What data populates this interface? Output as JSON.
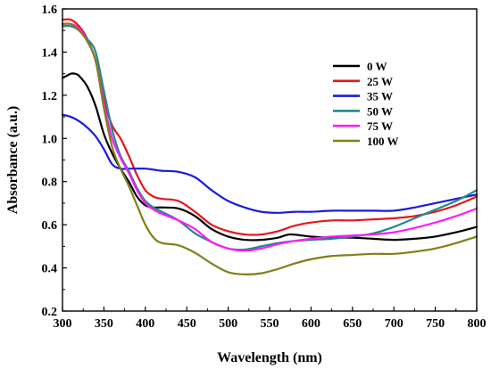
{
  "chart_data": {
    "type": "line",
    "title": "",
    "xlabel": "Wavelength (nm)",
    "ylabel": "Absorbance (a.u.)",
    "xlim": [
      300,
      800
    ],
    "ylim": [
      0.2,
      1.6
    ],
    "xticks": [
      300,
      350,
      400,
      450,
      500,
      550,
      600,
      650,
      700,
      750,
      800
    ],
    "yticks": [
      0.2,
      0.4,
      0.6,
      0.8,
      1.0,
      1.2,
      1.4,
      1.6
    ],
    "ytick_labels": [
      "0.2",
      "0.4",
      "0.6",
      "0.8",
      "1.0",
      "1.2",
      "1.4",
      "1.6"
    ],
    "legend_position": "top-right",
    "grid": false,
    "series": [
      {
        "name": "0 W",
        "color": "#000000",
        "x": [
          300,
          305,
          310,
          315,
          320,
          330,
          340,
          350,
          360,
          370,
          380,
          390,
          400,
          410,
          420,
          440,
          460,
          480,
          500,
          520,
          540,
          560,
          575,
          600,
          625,
          650,
          675,
          700,
          725,
          750,
          775,
          800
        ],
        "y": [
          1.28,
          1.29,
          1.3,
          1.3,
          1.29,
          1.24,
          1.15,
          1.02,
          0.93,
          0.86,
          0.8,
          0.73,
          0.69,
          0.68,
          0.68,
          0.675,
          0.64,
          0.58,
          0.545,
          0.53,
          0.53,
          0.54,
          0.555,
          0.545,
          0.54,
          0.54,
          0.535,
          0.53,
          0.535,
          0.545,
          0.565,
          0.59
        ]
      },
      {
        "name": "25 W",
        "color": "#e8141b",
        "x": [
          300,
          310,
          320,
          330,
          340,
          350,
          360,
          370,
          380,
          390,
          400,
          410,
          420,
          440,
          460,
          480,
          500,
          520,
          540,
          560,
          580,
          600,
          625,
          650,
          675,
          700,
          725,
          750,
          775,
          800
        ],
        "y": [
          1.55,
          1.55,
          1.52,
          1.46,
          1.36,
          1.18,
          1.06,
          1.0,
          0.92,
          0.83,
          0.76,
          0.73,
          0.72,
          0.71,
          0.66,
          0.6,
          0.57,
          0.555,
          0.555,
          0.57,
          0.595,
          0.61,
          0.62,
          0.62,
          0.625,
          0.63,
          0.64,
          0.66,
          0.69,
          0.73
        ]
      },
      {
        "name": "35 W",
        "color": "#1a1ae0",
        "x": [
          300,
          310,
          320,
          330,
          340,
          350,
          360,
          370,
          380,
          390,
          400,
          410,
          420,
          440,
          460,
          480,
          500,
          520,
          540,
          560,
          580,
          600,
          625,
          650,
          675,
          700,
          725,
          750,
          775,
          800
        ],
        "y": [
          1.11,
          1.1,
          1.08,
          1.05,
          1.01,
          0.95,
          0.88,
          0.86,
          0.86,
          0.86,
          0.86,
          0.855,
          0.85,
          0.845,
          0.82,
          0.76,
          0.71,
          0.68,
          0.66,
          0.655,
          0.66,
          0.66,
          0.665,
          0.665,
          0.665,
          0.665,
          0.68,
          0.7,
          0.72,
          0.74
        ]
      },
      {
        "name": "50 W",
        "color": "#1f8a8a",
        "x": [
          300,
          310,
          320,
          330,
          340,
          350,
          360,
          370,
          380,
          390,
          400,
          410,
          420,
          440,
          460,
          480,
          500,
          520,
          540,
          560,
          580,
          600,
          625,
          650,
          675,
          700,
          725,
          750,
          775,
          800
        ],
        "y": [
          1.52,
          1.52,
          1.5,
          1.46,
          1.4,
          1.22,
          1.04,
          0.92,
          0.85,
          0.77,
          0.71,
          0.68,
          0.66,
          0.62,
          0.56,
          0.52,
          0.49,
          0.485,
          0.5,
          0.515,
          0.525,
          0.53,
          0.535,
          0.545,
          0.56,
          0.59,
          0.63,
          0.67,
          0.71,
          0.76
        ]
      },
      {
        "name": "75 W",
        "color": "#ff1aff",
        "x": [
          300,
          310,
          320,
          330,
          340,
          350,
          360,
          370,
          380,
          390,
          400,
          410,
          420,
          440,
          460,
          480,
          500,
          520,
          540,
          560,
          580,
          600,
          625,
          650,
          675,
          700,
          725,
          750,
          775,
          800
        ],
        "y": [
          1.53,
          1.53,
          1.51,
          1.45,
          1.36,
          1.16,
          1.0,
          0.91,
          0.84,
          0.76,
          0.7,
          0.67,
          0.65,
          0.62,
          0.58,
          0.52,
          0.49,
          0.48,
          0.49,
          0.51,
          0.525,
          0.535,
          0.545,
          0.55,
          0.555,
          0.565,
          0.585,
          0.61,
          0.64,
          0.675
        ]
      },
      {
        "name": "100 W",
        "color": "#808018",
        "x": [
          300,
          310,
          320,
          330,
          340,
          350,
          360,
          370,
          380,
          390,
          400,
          410,
          420,
          440,
          460,
          480,
          500,
          520,
          540,
          560,
          580,
          600,
          625,
          650,
          675,
          700,
          725,
          750,
          775,
          800
        ],
        "y": [
          1.53,
          1.53,
          1.5,
          1.45,
          1.36,
          1.14,
          0.96,
          0.86,
          0.78,
          0.69,
          0.6,
          0.54,
          0.515,
          0.505,
          0.47,
          0.42,
          0.38,
          0.37,
          0.375,
          0.395,
          0.42,
          0.44,
          0.455,
          0.46,
          0.465,
          0.465,
          0.475,
          0.49,
          0.515,
          0.545
        ]
      }
    ]
  }
}
